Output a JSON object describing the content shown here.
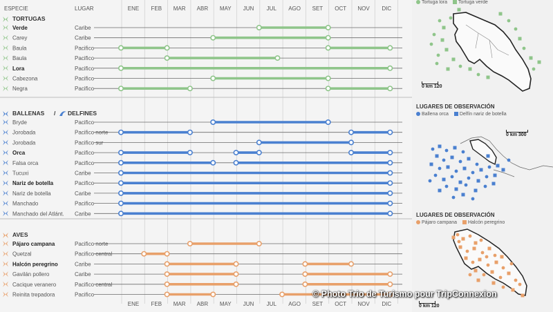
{
  "chart_data": {
    "type": "timeline",
    "header": {
      "col_species": "ESPECIE",
      "col_place": "LUGAR"
    },
    "months": [
      "ENE",
      "FEB",
      "MAR",
      "ABR",
      "MAY",
      "JUN",
      "JUL",
      "AGO",
      "SET",
      "OCT",
      "NOV",
      "DIC"
    ],
    "sections": [
      {
        "title": "TORTUGAS",
        "title_extra": "",
        "color": "#8fc58a",
        "rows": [
          {
            "name": "Verde",
            "bold": true,
            "place": "Caribe",
            "segments": [
              [
                7,
                10
              ]
            ]
          },
          {
            "name": "Carey",
            "bold": false,
            "place": "Caribe",
            "segments": [
              [
                5,
                10
              ]
            ]
          },
          {
            "name": "Baula",
            "bold": false,
            "place": "Pacifico",
            "segments": [
              [
                1,
                3
              ],
              [
                10,
                12
              ]
            ]
          },
          {
            "name": "Baula",
            "bold": false,
            "place": "Pacifico",
            "segments": [
              [
                3,
                7.8
              ]
            ]
          },
          {
            "name": "Lora",
            "bold": true,
            "place": "Pacifico",
            "segments": [
              [
                1,
                12
              ]
            ]
          },
          {
            "name": "Cabezona",
            "bold": false,
            "place": "Pacifico",
            "segments": [
              [
                5,
                10
              ]
            ]
          },
          {
            "name": "Negra",
            "bold": false,
            "place": "Pacifico",
            "segments": [
              [
                1,
                4
              ],
              [
                10,
                12
              ]
            ]
          }
        ]
      },
      {
        "title": "BALLENAS",
        "title_extra": "DELFINES",
        "color": "#4a80d0",
        "rows": [
          {
            "name": "Bryde",
            "bold": false,
            "place": "Pacifico",
            "segments": [
              [
                5,
                10
              ]
            ]
          },
          {
            "name": "Jorobada",
            "bold": false,
            "place": "Pacifico norte",
            "segments": [
              [
                1,
                4
              ],
              [
                11,
                12
              ]
            ]
          },
          {
            "name": "Jorobada",
            "bold": false,
            "place": "Pacifico sur",
            "segments": [
              [
                7,
                11
              ]
            ]
          },
          {
            "name": "Orca",
            "bold": true,
            "place": "Pacifico",
            "segments": [
              [
                1,
                4
              ],
              [
                6,
                7
              ],
              [
                11,
                12
              ]
            ]
          },
          {
            "name": "Falsa orca",
            "bold": false,
            "place": "Pacifico",
            "segments": [
              [
                1,
                5
              ],
              [
                6,
                12
              ]
            ]
          },
          {
            "name": "Tucuxi",
            "bold": false,
            "place": "Caribe",
            "segments": [
              [
                1,
                12
              ]
            ]
          },
          {
            "name": "Nariz de botella",
            "bold": true,
            "place": "Pacifico",
            "segments": [
              [
                1,
                12
              ]
            ]
          },
          {
            "name": "Nariz de botella",
            "bold": false,
            "place": "Caribe",
            "segments": [
              [
                1,
                12
              ]
            ]
          },
          {
            "name": "Manchado",
            "bold": false,
            "place": "Pacifico",
            "segments": [
              [
                1,
                12
              ]
            ]
          },
          {
            "name": "Manchado del Atlánt.",
            "bold": false,
            "place": "Caribe",
            "segments": [
              [
                1,
                12
              ]
            ]
          }
        ]
      },
      {
        "title": "AVES",
        "title_extra": "",
        "color": "#e8a06a",
        "rows": [
          {
            "name": "Pájaro campana",
            "bold": true,
            "place": "Pacifico norte",
            "segments": [
              [
                4,
                7
              ]
            ]
          },
          {
            "name": "Quetzal",
            "bold": false,
            "place": "Pacifico central",
            "segments": [
              [
                2,
                3
              ]
            ]
          },
          {
            "name": "Halcón peregrino",
            "bold": true,
            "place": "Caribe",
            "segments": [
              [
                3,
                6
              ],
              [
                9,
                11
              ]
            ]
          },
          {
            "name": "Gavilán pollero",
            "bold": false,
            "place": "Caribe",
            "segments": [
              [
                3,
                6
              ],
              [
                9,
                12
              ]
            ]
          },
          {
            "name": "Cacique veranero",
            "bold": false,
            "place": "Pacifico central",
            "segments": [
              [
                3,
                6
              ],
              [
                9,
                12
              ]
            ]
          },
          {
            "name": "Reinita trepadora",
            "bold": false,
            "place": "Pacifico",
            "segments": [
              [
                3,
                5
              ],
              [
                8,
                12
              ]
            ]
          }
        ]
      }
    ]
  },
  "maps": {
    "turtles": {
      "legend": [
        "Tortuga lora",
        "Tortuga verde"
      ],
      "legend_colors": [
        "#8fc58a",
        "#8fc58a"
      ],
      "scale": "0   km 120"
    },
    "cetaceans": {
      "title": "LUGARES DE OBSERVACIÓN",
      "legend": [
        "Ballena orca",
        "Delfín nariz de botella"
      ],
      "legend_colors": [
        "#4a80d0",
        "#4a80d0"
      ],
      "scale": "0   km  300"
    },
    "birds": {
      "title": "LUGARES DE OBSERVACIÓN",
      "legend": [
        "Pájaro campana",
        "Halcón peregrino"
      ],
      "legend_colors": [
        "#e8a06a",
        "#e8a06a"
      ],
      "scale": "0   km 120"
    }
  },
  "credit": "© Photo Trio de Turismo pour TripConnexion"
}
